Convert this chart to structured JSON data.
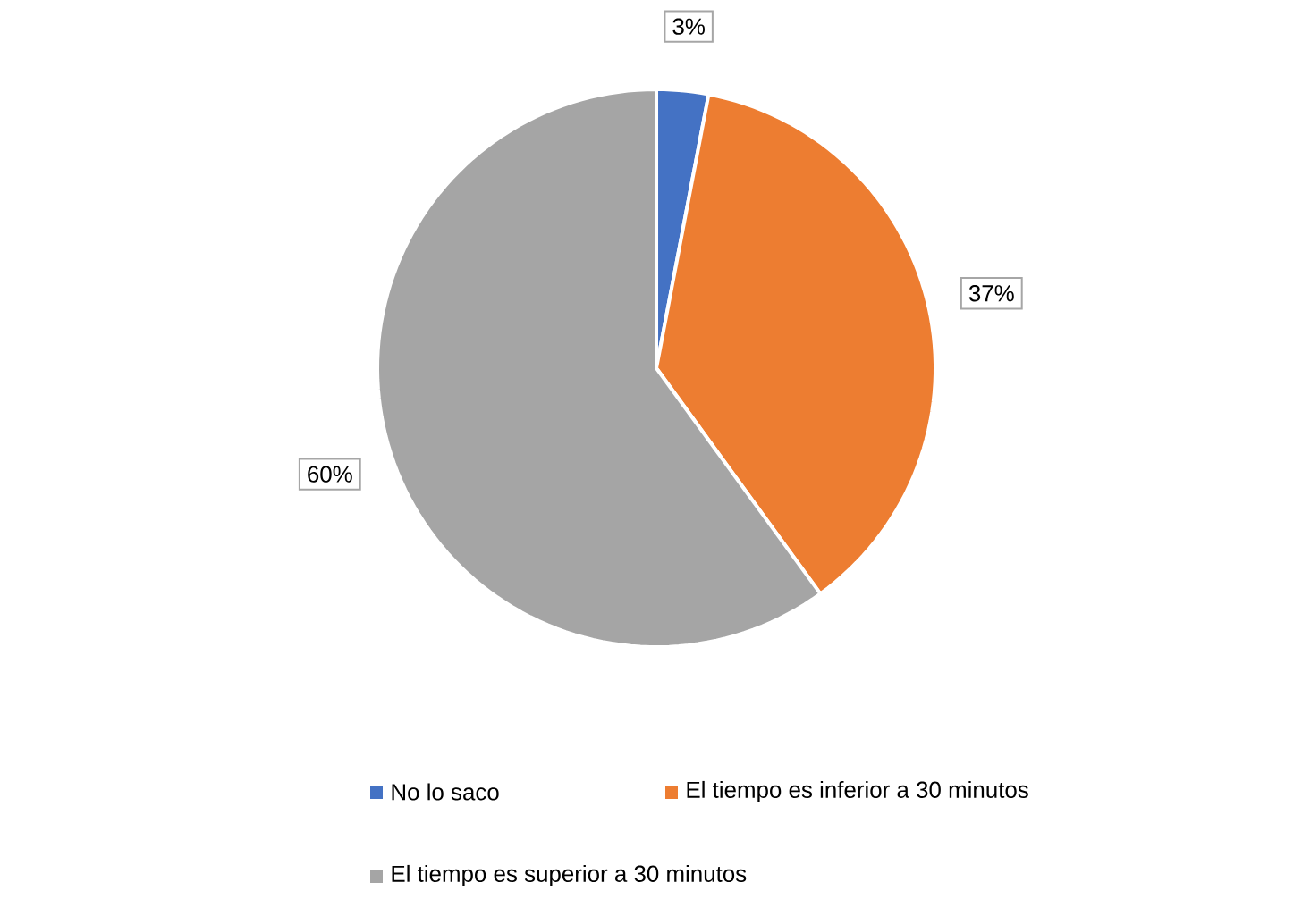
{
  "chart_data": {
    "type": "pie",
    "categories": [
      "No lo saco",
      "El tiempo es inferior a 30 minutos",
      "El tiempo es superior a 30 minutos"
    ],
    "values": [
      3,
      37,
      60
    ],
    "colors": [
      "#4472c4",
      "#ed7d31",
      "#a5a5a5"
    ],
    "value_labels": [
      "3%",
      "37%",
      "60%"
    ],
    "legend": "bottom"
  }
}
